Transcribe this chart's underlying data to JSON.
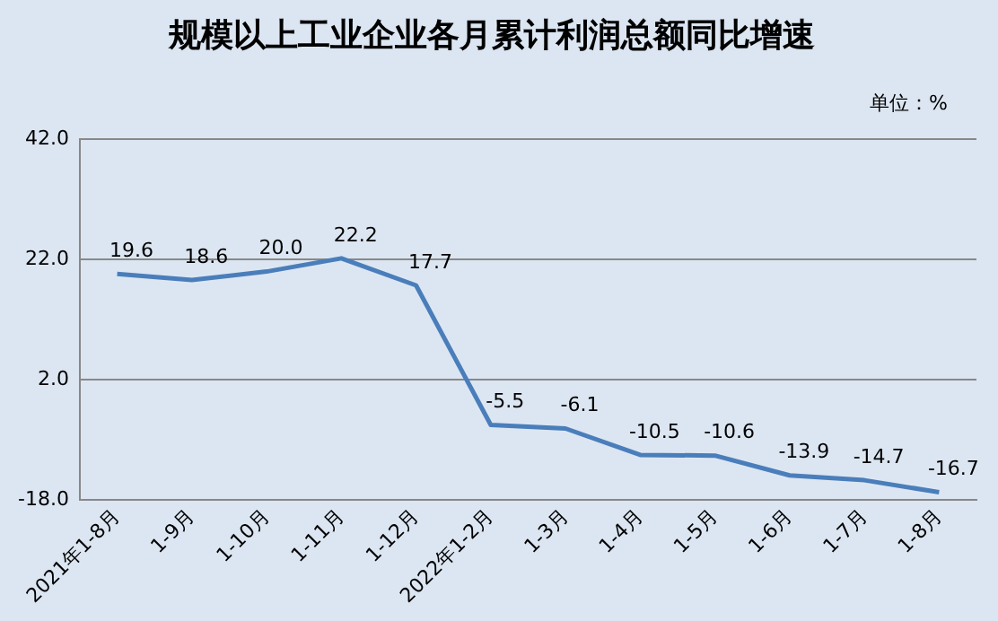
{
  "chart_data": {
    "type": "line",
    "title": "规模以上工业企业各月累计利润总额同比增速",
    "annotations": [
      "单位：%"
    ],
    "categories": [
      "2021年1-8月",
      "1-9月",
      "1-10月",
      "1-11月",
      "1-12月",
      "2022年1-2月",
      "1-3月",
      "1-4月",
      "1-5月",
      "1-6月",
      "1-7月",
      "1-8月"
    ],
    "series": [
      {
        "color": "#4a7ebb",
        "values": [
          19.6,
          18.6,
          20.0,
          22.2,
          17.7,
          -5.5,
          -6.1,
          -10.5,
          -10.6,
          -13.9,
          -14.7,
          -16.7
        ],
        "value_labels": [
          "19.6",
          "18.6",
          "20.0",
          "22.2",
          "17.7",
          "-5.5",
          "-6.1",
          "-10.5",
          "-10.6",
          "-13.9",
          "-14.7",
          "-16.7"
        ]
      }
    ],
    "ylim": [
      -18,
      42
    ],
    "yticks": [
      {
        "value": -18,
        "label": "-18.0"
      },
      {
        "value": 2,
        "label": "2.0"
      },
      {
        "value": 22,
        "label": "22.0"
      },
      {
        "value": 42,
        "label": "42.0"
      }
    ],
    "grid": "y",
    "legend": false,
    "marker": "none",
    "line_style": "solid"
  }
}
